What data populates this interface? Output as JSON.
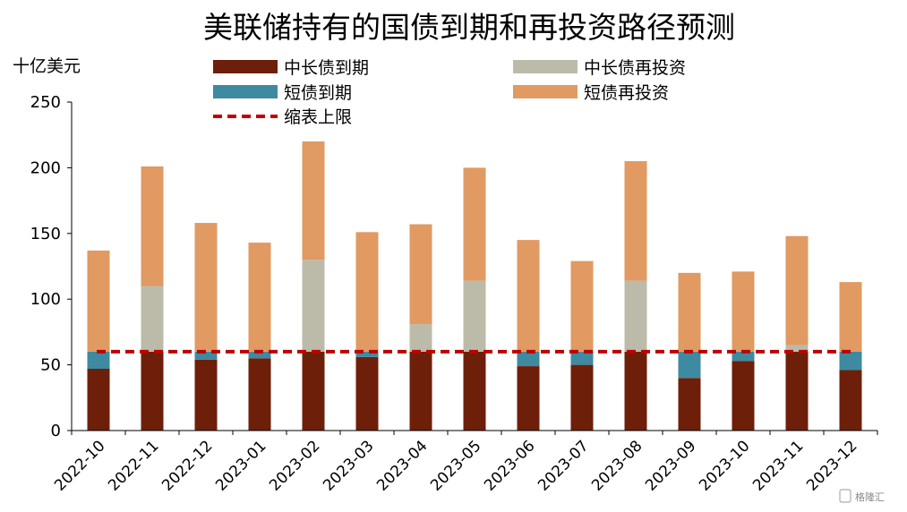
{
  "chart_data": {
    "type": "bar",
    "stacked": true,
    "title": "美联储持有的国债到期和再投资路径预测",
    "unit_label": "十亿美元",
    "categories": [
      "2022-10",
      "2022-11",
      "2022-12",
      "2023-01",
      "2023-02",
      "2023-03",
      "2023-04",
      "2023-05",
      "2023-06",
      "2023-07",
      "2023-08",
      "2023-09",
      "2023-10",
      "2023-11",
      "2023-12"
    ],
    "ylim": [
      0,
      250
    ],
    "yticks": [
      0,
      50,
      100,
      150,
      200,
      250
    ],
    "series": [
      {
        "name": "中长债到期",
        "color": "#6e1f0a",
        "values": [
          47,
          60,
          54,
          55,
          60,
          56,
          60,
          60,
          49,
          50,
          60,
          40,
          53,
          60,
          46
        ]
      },
      {
        "name": "短债到期",
        "color": "#3e8aa0",
        "values": [
          13,
          0,
          6,
          5,
          0,
          4,
          0,
          0,
          11,
          10,
          0,
          20,
          7,
          0,
          14
        ]
      },
      {
        "name": "中长债再投资",
        "color": "#bcbba9",
        "values": [
          0,
          50,
          0,
          0,
          70,
          0,
          21,
          54,
          0,
          0,
          54,
          0,
          0,
          5,
          0
        ]
      },
      {
        "name": "短债再投资",
        "color": "#e09a62",
        "values": [
          77,
          91,
          98,
          83,
          90,
          91,
          76,
          86,
          85,
          69,
          91,
          60,
          61,
          83,
          53
        ]
      }
    ],
    "cap_line": {
      "name": "缩表上限",
      "value": 60,
      "color": "#c00000",
      "style": "dashed"
    },
    "legend_placement": "top",
    "grid": false
  },
  "watermark": "格隆汇"
}
